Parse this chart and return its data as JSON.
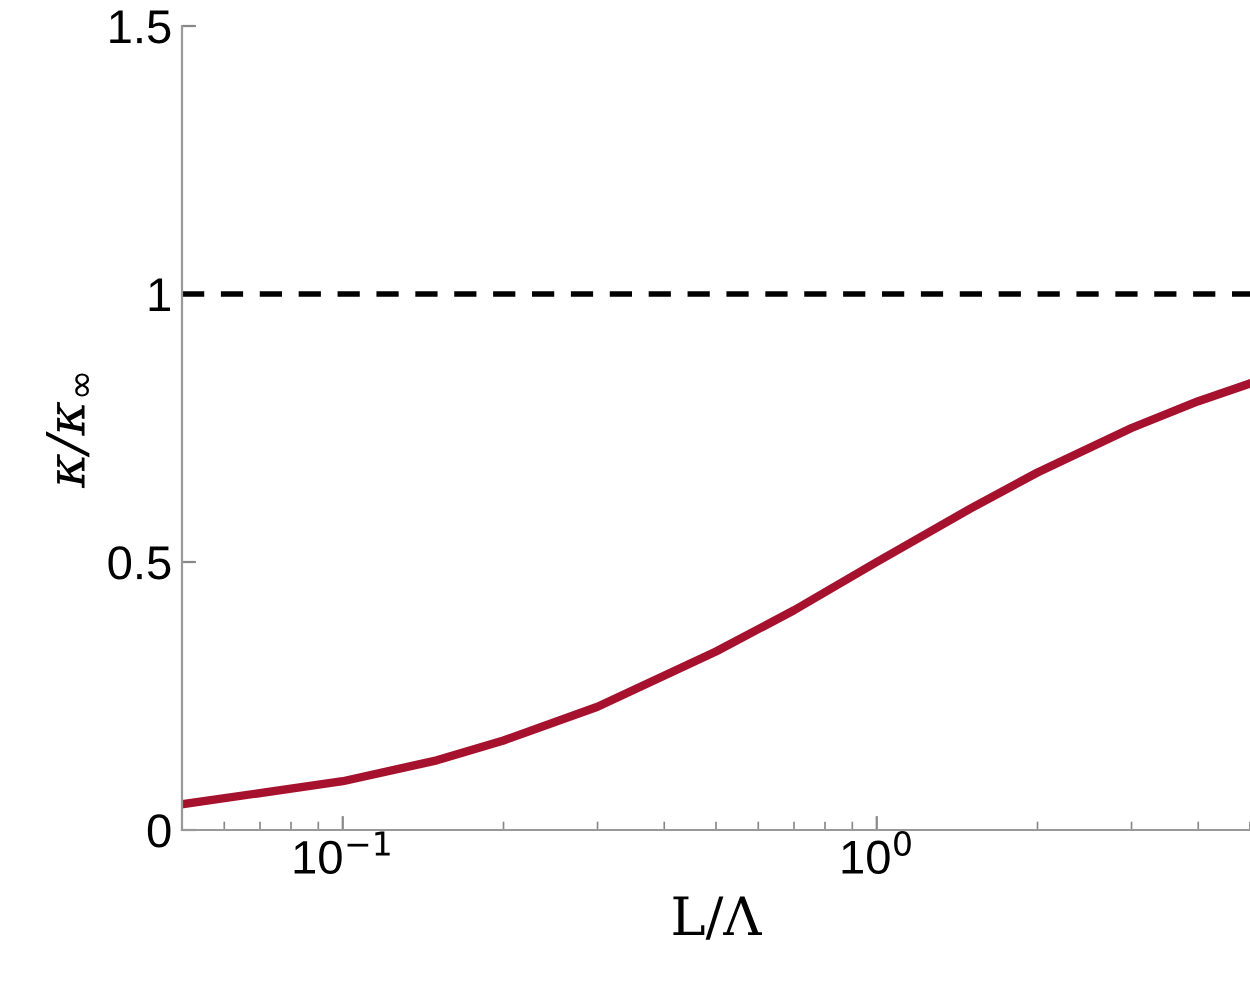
{
  "chart_data": {
    "type": "line",
    "xlabel": "L/Λ",
    "ylabel": "κ/κ$_{∞}$",
    "log": "x",
    "xlim": [
      0.05,
      5
    ],
    "xticks": [
      {
        "value": 0.1,
        "label": "10$^{−1}$"
      },
      {
        "value": 1,
        "label": "10$^{0}$"
      }
    ],
    "ylim": [
      0,
      1.5
    ],
    "yticks": [
      0,
      0.5,
      1,
      1.5
    ],
    "grid": false,
    "legend": false,
    "marker": "none",
    "x": [
      0.05,
      0.1,
      0.15,
      0.2,
      0.3,
      0.5,
      0.7,
      1,
      1.5,
      2,
      3,
      4,
      5
    ],
    "series": [
      {
        "color": "#a6122e",
        "line_style": "solid",
        "values": [
          0.048,
          0.091,
          0.13,
          0.167,
          0.23,
          0.333,
          0.41,
          0.5,
          0.6,
          0.667,
          0.75,
          0.8,
          0.833
        ]
      }
    ],
    "ref_lines": [
      {
        "axis": "y",
        "value": 1,
        "color": "#000000",
        "line_style": "dashed"
      }
    ]
  }
}
